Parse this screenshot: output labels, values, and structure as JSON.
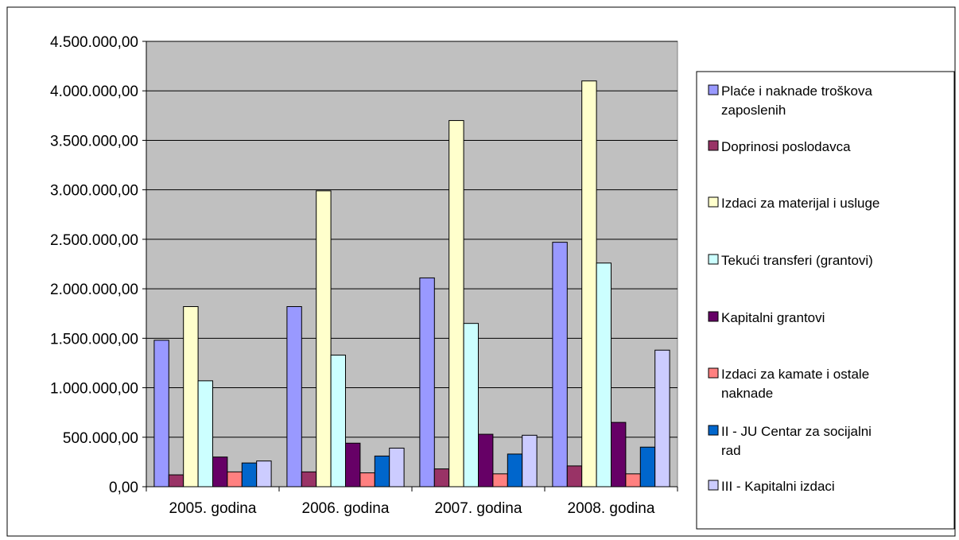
{
  "chart_data": {
    "type": "bar",
    "title": "",
    "xlabel": "",
    "ylabel": "",
    "ylim": [
      0,
      4500000
    ],
    "y_ticks": [
      0,
      500000,
      1000000,
      1500000,
      2000000,
      2500000,
      3000000,
      3500000,
      4000000,
      4500000
    ],
    "y_tick_labels": [
      "0,00",
      "500.000,00",
      "1.000.000,00",
      "1.500.000,00",
      "2.000.000,00",
      "2.500.000,00",
      "3.000.000,00",
      "3.500.000,00",
      "4.000.000,00",
      "4.500.000,00"
    ],
    "grid": true,
    "legend_position": "right",
    "plot_background": "#c0c0c0",
    "categories": [
      "2005. godina",
      "2006. godina",
      "2007. godina",
      "2008. godina"
    ],
    "series": [
      {
        "name": "Plaće i naknade troškova zaposlenih",
        "color": "#9999ff",
        "values": [
          1480000,
          1820000,
          2110000,
          2470000
        ]
      },
      {
        "name": "Doprinosi poslodavca",
        "color": "#993366",
        "values": [
          120000,
          150000,
          180000,
          210000
        ]
      },
      {
        "name": "Izdaci za materijal i usluge",
        "color": "#ffffcc",
        "values": [
          1820000,
          2990000,
          3700000,
          4100000
        ]
      },
      {
        "name": "Tekući transferi (grantovi)",
        "color": "#ccffff",
        "values": [
          1070000,
          1330000,
          1650000,
          2260000
        ]
      },
      {
        "name": "Kapitalni grantovi",
        "color": "#660066",
        "values": [
          300000,
          440000,
          530000,
          650000
        ]
      },
      {
        "name": "Izdaci za kamate i ostale naknade",
        "color": "#ff8080",
        "values": [
          150000,
          140000,
          130000,
          130000
        ]
      },
      {
        "name": "II - JU Centar za socijalni rad",
        "color": "#0066cc",
        "values": [
          240000,
          310000,
          330000,
          400000
        ]
      },
      {
        "name": "III - Kapitalni izdaci",
        "color": "#ccccff",
        "values": [
          260000,
          390000,
          520000,
          1380000
        ]
      }
    ]
  }
}
